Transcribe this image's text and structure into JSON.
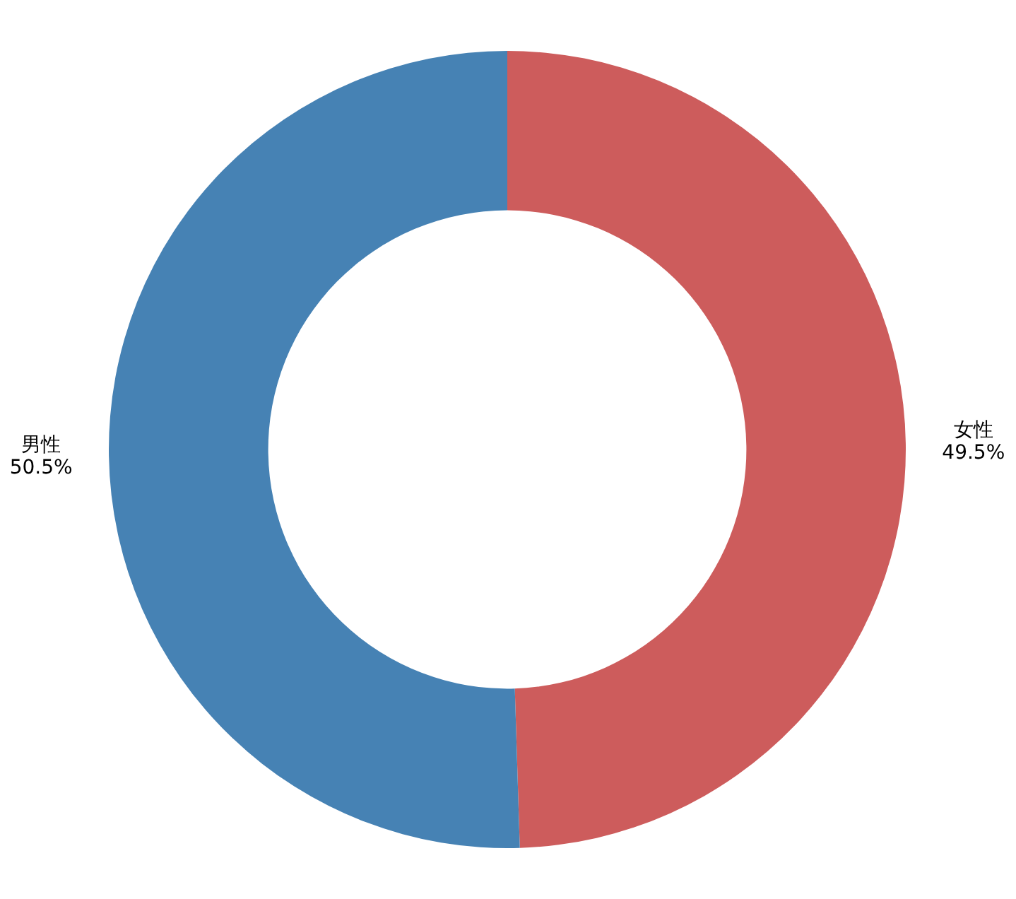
{
  "chart_data": {
    "type": "donut",
    "categories": [
      "女性",
      "男性"
    ],
    "values": [
      49.5,
      50.5
    ],
    "value_labels": [
      "49.5%",
      "50.5%"
    ],
    "colors": [
      "#cd5c5c",
      "#4682b4"
    ]
  }
}
